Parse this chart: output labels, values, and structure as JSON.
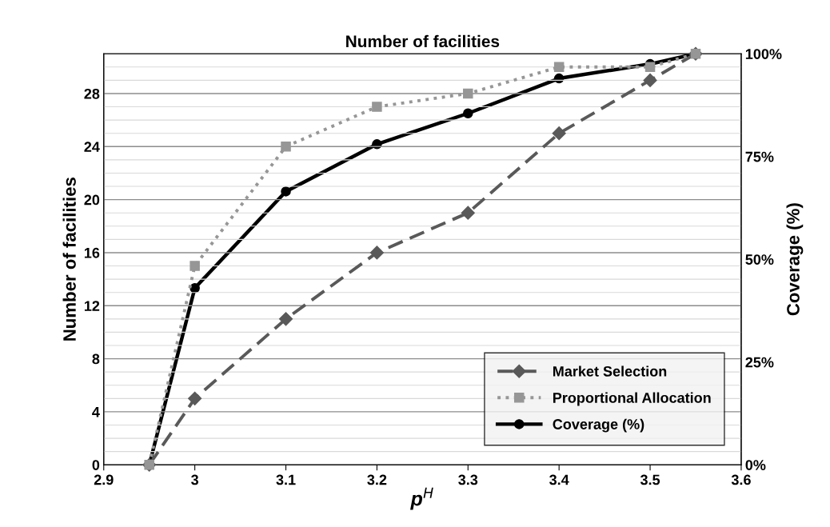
{
  "chart_data": {
    "type": "line",
    "title": "Number of facilities",
    "xlabel": "p$^{H}$",
    "ylabel": "Number of facilities",
    "y2label": "Coverage (%)",
    "x": [
      2.95,
      3.0,
      3.1,
      3.2,
      3.3,
      3.4,
      3.5,
      3.55
    ],
    "series": [
      {
        "name": "Market Selection",
        "color": "#595959",
        "values": [
          0,
          5,
          11,
          16,
          19,
          25,
          29,
          31
        ],
        "marker": "diamond",
        "line_style": "dashed"
      },
      {
        "name": "Proportional Allocation",
        "color": "#969696",
        "values": [
          0,
          15,
          24,
          27,
          28,
          30,
          30,
          31
        ],
        "marker": "square",
        "line_style": "dotted"
      },
      {
        "name": "Coverage (%)",
        "color": "#000000",
        "values": [
          0,
          43,
          66.5,
          78,
          85.5,
          94,
          97.5,
          100
        ],
        "marker": "circle",
        "line_style": "solid",
        "axis": "y2"
      }
    ],
    "xlim": [
      2.9,
      3.6
    ],
    "xticks": [
      2.9,
      3,
      3.1,
      3.2,
      3.3,
      3.4,
      3.5,
      3.6
    ],
    "ylim": [
      0,
      31
    ],
    "yticks": [
      0,
      {
        "value": 1,
        "label": null
      },
      {
        "value": 2,
        "label": null
      },
      {
        "value": 3,
        "label": null
      },
      4,
      {
        "value": 5,
        "label": null
      },
      {
        "value": 6,
        "label": null
      },
      {
        "value": 7,
        "label": null
      },
      8,
      {
        "value": 9,
        "label": null
      },
      {
        "value": 10,
        "label": null
      },
      {
        "value": 11,
        "label": null
      },
      12,
      {
        "value": 13,
        "label": null
      },
      {
        "value": 14,
        "label": null
      },
      {
        "value": 15,
        "label": null
      },
      16,
      {
        "value": 17,
        "label": null
      },
      {
        "value": 18,
        "label": null
      },
      {
        "value": 19,
        "label": null
      },
      20,
      {
        "value": 21,
        "label": null
      },
      {
        "value": 22,
        "label": null
      },
      {
        "value": 23,
        "label": null
      },
      24,
      {
        "value": 25,
        "label": null
      },
      {
        "value": 26,
        "label": null
      },
      {
        "value": 27,
        "label": null
      },
      28,
      {
        "value": 29,
        "label": null
      },
      {
        "value": 30,
        "label": null
      },
      {
        "value": 31,
        "label": null
      }
    ],
    "y2lim": [
      0,
      100
    ],
    "y2ticks": [
      {
        "value": 0,
        "label": "0%"
      },
      {
        "value": 25,
        "label": "25%"
      },
      {
        "value": 50,
        "label": "50%"
      },
      {
        "value": 75,
        "label": "75%"
      },
      {
        "value": 100,
        "label": "100%"
      }
    ],
    "grid": "y",
    "legend": "bottom right"
  }
}
